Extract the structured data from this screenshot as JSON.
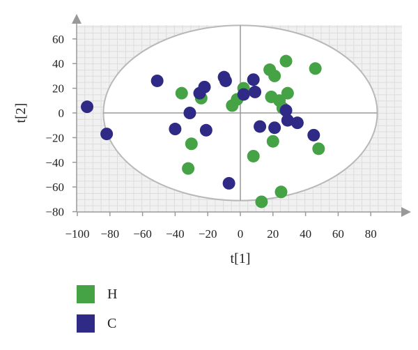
{
  "chart_data": {
    "type": "scatter",
    "xlabel": "t[1]",
    "ylabel": "t[2]",
    "xlim": [
      -100,
      80
    ],
    "ylim": [
      -80,
      60
    ],
    "x_ticks": [
      -100,
      -80,
      -60,
      -40,
      -20,
      0,
      20,
      40,
      60,
      80
    ],
    "y_ticks": [
      -80,
      -60,
      -40,
      -20,
      0,
      20,
      40,
      60
    ],
    "x_tick_labels": [
      "−100",
      "−80",
      "−60",
      "−40",
      "−20",
      "0",
      "20",
      "40",
      "60",
      "80"
    ],
    "y_tick_labels": [
      "−80",
      "−60",
      "−40",
      "−20",
      "0",
      "20",
      "40",
      "60"
    ],
    "grid": true,
    "ellipse": {
      "center": [
        0,
        0
      ],
      "radius_x": 84,
      "radius_y": 71
    },
    "legend_position": "bottom-left",
    "series": [
      {
        "name": "H",
        "color": "#45a245",
        "points": [
          [
            28,
            42
          ],
          [
            46,
            36
          ],
          [
            18,
            35
          ],
          [
            21,
            30
          ],
          [
            -36,
            16
          ],
          [
            -24,
            12
          ],
          [
            29,
            16
          ],
          [
            19,
            13
          ],
          [
            24,
            10
          ],
          [
            2,
            20
          ],
          [
            -2,
            11
          ],
          [
            -5,
            6
          ],
          [
            26,
            4
          ],
          [
            -30,
            -25
          ],
          [
            20,
            -23
          ],
          [
            48,
            -29
          ],
          [
            8,
            -35
          ],
          [
            -32,
            -45
          ],
          [
            25,
            -64
          ],
          [
            13,
            -72
          ]
        ]
      },
      {
        "name": "C",
        "color": "#2e2a85",
        "points": [
          [
            -94,
            5
          ],
          [
            -82,
            -17
          ],
          [
            -51,
            26
          ],
          [
            -40,
            -13
          ],
          [
            -31,
            0
          ],
          [
            -25,
            16
          ],
          [
            -22,
            21
          ],
          [
            -21,
            -14
          ],
          [
            -10,
            29
          ],
          [
            -9,
            26
          ],
          [
            8,
            27
          ],
          [
            9,
            17
          ],
          [
            2,
            15
          ],
          [
            12,
            -11
          ],
          [
            21,
            -12
          ],
          [
            28,
            2
          ],
          [
            29,
            -6
          ],
          [
            35,
            -8
          ],
          [
            45,
            -18
          ],
          [
            -7,
            -57
          ]
        ]
      }
    ]
  }
}
